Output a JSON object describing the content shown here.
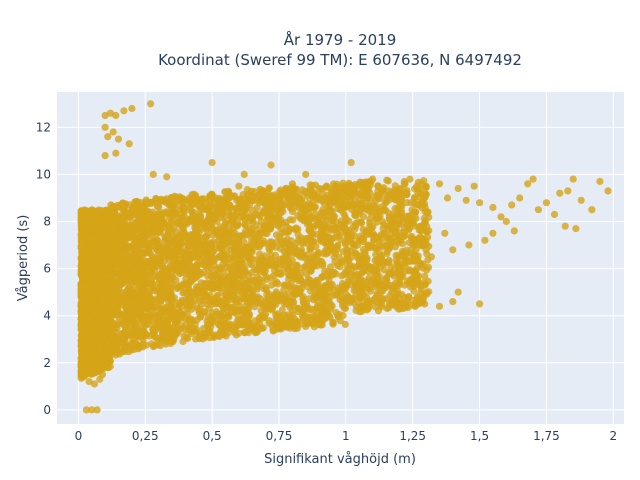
{
  "chart_data": {
    "type": "scatter",
    "title_line1": "År 1979 - 2019",
    "title_line2": "Koordinat (Sweref 99 TM): E 607636, N 6497492",
    "xlabel": "Signifikant våghöjd (m)",
    "ylabel": "Vågperiod (s)",
    "xlim": [
      -0.08,
      2.04
    ],
    "ylim": [
      -0.6,
      13.5
    ],
    "x_ticks": [
      0,
      0.25,
      0.5,
      0.75,
      1,
      1.25,
      1.5,
      1.75,
      2
    ],
    "x_tick_labels": [
      "0",
      "0,25",
      "0,5",
      "0,75",
      "1",
      "1,25",
      "1,5",
      "1,75",
      "2"
    ],
    "y_ticks": [
      0,
      2,
      4,
      6,
      8,
      10,
      12
    ],
    "y_tick_labels": [
      "0",
      "2",
      "4",
      "6",
      "8",
      "10",
      "12"
    ],
    "grid": true,
    "background": "#e5ecf6",
    "marker_color": "#d4a418",
    "points": [
      [
        0.03,
        0
      ],
      [
        0.05,
        0
      ],
      [
        0.07,
        0
      ],
      [
        0.1,
        12.5
      ],
      [
        0.12,
        12.6
      ],
      [
        0.14,
        12.5
      ],
      [
        0.17,
        12.7
      ],
      [
        0.2,
        12.8
      ],
      [
        0.27,
        13.0
      ],
      [
        0.1,
        12.0
      ],
      [
        0.13,
        11.8
      ],
      [
        0.11,
        11.6
      ],
      [
        0.15,
        11.5
      ],
      [
        0.19,
        11.3
      ],
      [
        0.1,
        10.8
      ],
      [
        0.14,
        10.9
      ],
      [
        0.28,
        10.0
      ],
      [
        0.33,
        9.9
      ],
      [
        0.5,
        10.5
      ],
      [
        0.62,
        10.0
      ],
      [
        0.72,
        10.4
      ],
      [
        0.85,
        10.0
      ],
      [
        1.02,
        10.5
      ],
      [
        1.1,
        9.8
      ],
      [
        0.6,
        9.5
      ],
      [
        0.8,
        9.6
      ],
      [
        0.9,
        9.4
      ],
      [
        0.95,
        9.3
      ],
      [
        1.05,
        9.2
      ],
      [
        1.12,
        9.3
      ],
      [
        1.2,
        9.4
      ],
      [
        1.3,
        9.5
      ],
      [
        1.35,
        9.6
      ],
      [
        1.42,
        9.4
      ],
      [
        1.48,
        9.5
      ],
      [
        1.38,
        9.0
      ],
      [
        1.45,
        8.9
      ],
      [
        1.5,
        8.8
      ],
      [
        1.55,
        8.6
      ],
      [
        1.58,
        8.2
      ],
      [
        1.62,
        8.7
      ],
      [
        1.65,
        9.0
      ],
      [
        1.68,
        9.6
      ],
      [
        1.7,
        9.8
      ],
      [
        1.72,
        8.5
      ],
      [
        1.75,
        8.8
      ],
      [
        1.78,
        8.3
      ],
      [
        1.8,
        9.2
      ],
      [
        1.83,
        9.3
      ],
      [
        1.85,
        9.8
      ],
      [
        1.88,
        8.9
      ],
      [
        1.82,
        7.8
      ],
      [
        1.86,
        7.7
      ],
      [
        1.92,
        8.5
      ],
      [
        1.95,
        9.7
      ],
      [
        1.98,
        9.3
      ],
      [
        1.6,
        8.0
      ],
      [
        1.63,
        7.6
      ],
      [
        1.55,
        7.5
      ],
      [
        1.52,
        7.2
      ],
      [
        1.46,
        7.0
      ],
      [
        1.4,
        6.8
      ],
      [
        1.32,
        6.5
      ],
      [
        1.24,
        6.3
      ],
      [
        1.3,
        6.8
      ],
      [
        1.37,
        7.5
      ],
      [
        1.5,
        4.5
      ],
      [
        1.4,
        4.6
      ],
      [
        1.42,
        5.0
      ],
      [
        1.35,
        4.4
      ],
      [
        1.22,
        5.3
      ],
      [
        1.15,
        5.6
      ],
      [
        1.1,
        6.0
      ],
      [
        1.2,
        5.8
      ],
      [
        1.25,
        7.2
      ],
      [
        1.28,
        7.8
      ],
      [
        1.18,
        8.2
      ],
      [
        1.08,
        8.5
      ],
      [
        0.98,
        8.9
      ],
      [
        0.04,
        1.2
      ],
      [
        0.06,
        1.1
      ],
      [
        0.08,
        1.3
      ],
      [
        0.05,
        1.6
      ],
      [
        0.09,
        1.5
      ]
    ],
    "dense_region_note": ""
  }
}
